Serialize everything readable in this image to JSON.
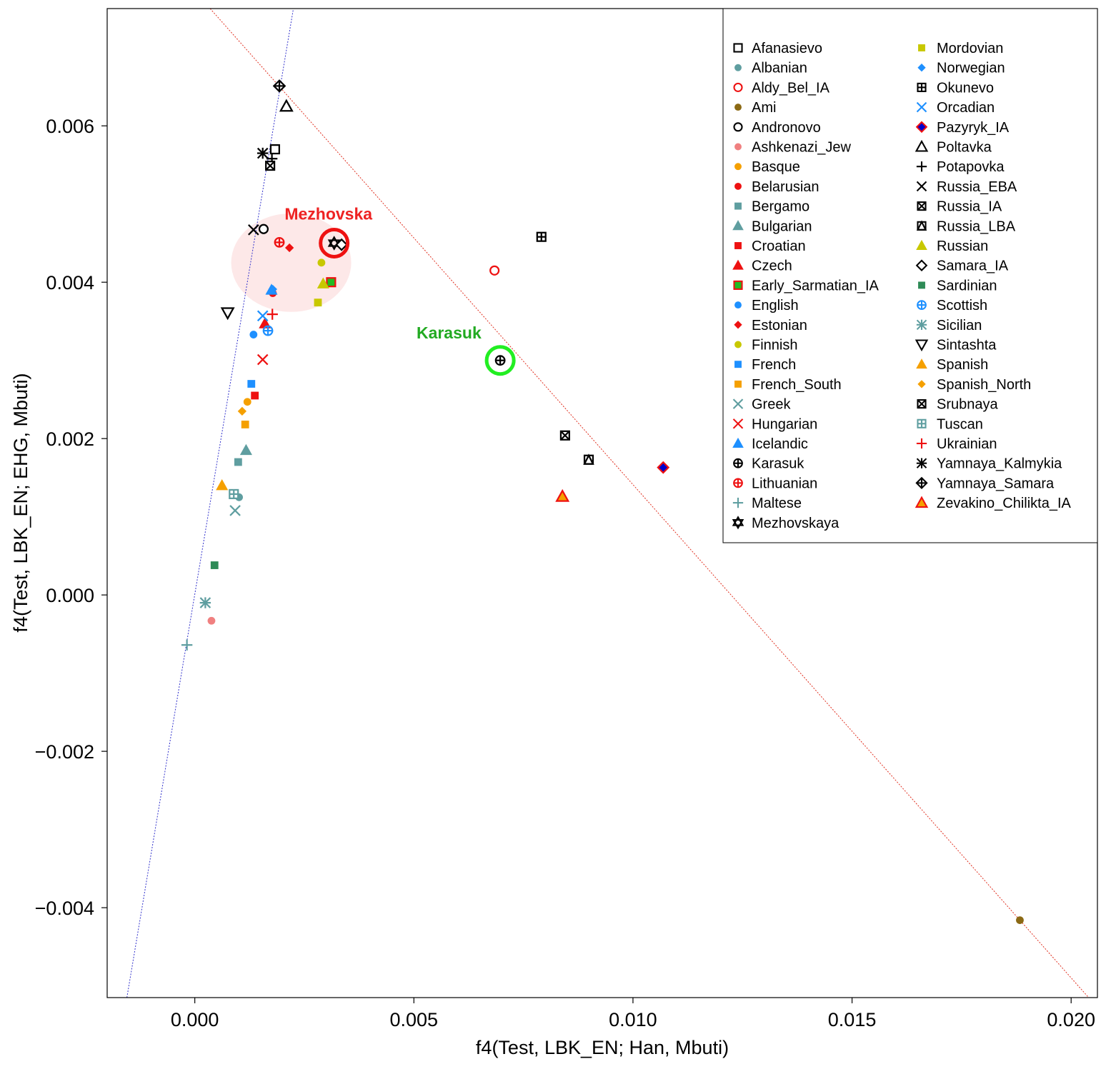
{
  "chart_data": {
    "type": "scatter",
    "title": "",
    "xlabel": "f4(Test, LBK_EN; Han, Mbuti)",
    "ylabel": "f4(Test, LBK_EN; EHG, Mbuti)",
    "xlim": [
      -0.002,
      0.0206
    ],
    "ylim": [
      -0.00515,
      0.0075
    ],
    "xticks": [
      0.0,
      0.005,
      0.01,
      0.015,
      0.02
    ],
    "xtick_labels": [
      "0.000",
      "0.005",
      "0.010",
      "0.015",
      "0.020"
    ],
    "yticks": [
      -0.004,
      -0.002,
      0.0,
      0.002,
      0.004,
      0.006
    ],
    "ytick_labels": [
      "−0.004",
      "−0.002",
      "0.000",
      "0.002",
      "0.004",
      "0.006"
    ],
    "grid": false,
    "legend_position": "top-right",
    "lines": [
      {
        "name": "blue-dotted",
        "color": "#3333cc",
        "points": [
          [
            -0.00155,
            -0.00515
          ],
          [
            0.00225,
            0.0075
          ]
        ]
      },
      {
        "name": "red-dotted",
        "color": "#e03020",
        "points": [
          [
            0.00035,
            0.0075
          ],
          [
            0.0204,
            -0.00515
          ]
        ]
      }
    ],
    "highlight_ellipse": {
      "cx": 0.0022,
      "cy": 0.00425,
      "rx": 0.00137,
      "ry": 0.00063,
      "color": "#fde8e8"
    },
    "annotations": [
      {
        "text": "Mezhovska",
        "x": 0.00305,
        "y": 0.0048,
        "color": "#ee2222"
      },
      {
        "text": "Karasuk",
        "x": 0.0058,
        "y": 0.00328,
        "color": "#22aa22"
      }
    ],
    "highlight_circles": [
      {
        "x": 0.00318,
        "y": 0.0045,
        "color": "#ee1111"
      },
      {
        "x": 0.00697,
        "y": 0.003,
        "color": "#22ee22"
      }
    ],
    "series": [
      {
        "name": "Afanasievo",
        "shape": "square-open",
        "color": "#000000",
        "points": [
          [
            0.00183,
            0.0057
          ]
        ]
      },
      {
        "name": "Albanian",
        "shape": "circle",
        "color": "#5f9ea0",
        "points": [
          [
            0.00101,
            0.00125
          ]
        ]
      },
      {
        "name": "Aldy_Bel_IA",
        "shape": "circle-open",
        "color": "#ee1111",
        "points": [
          [
            0.00684,
            0.00415
          ]
        ]
      },
      {
        "name": "Ami",
        "shape": "circle",
        "color": "#8b6914",
        "points": [
          [
            0.01883,
            -0.00416
          ]
        ]
      },
      {
        "name": "Andronovo",
        "shape": "circle-open",
        "color": "#000000",
        "points": [
          [
            0.00157,
            0.00468
          ]
        ]
      },
      {
        "name": "Ashkenazi_Jew",
        "shape": "circle",
        "color": "#f08080",
        "points": [
          [
            0.00038,
            -0.00033
          ]
        ]
      },
      {
        "name": "Basque",
        "shape": "circle",
        "color": "#f5a000",
        "points": [
          [
            0.0012,
            0.00247
          ]
        ]
      },
      {
        "name": "Belarusian",
        "shape": "circle",
        "color": "#ee1111",
        "points": [
          [
            0.00178,
            0.00386
          ]
        ]
      },
      {
        "name": "Bergamo",
        "shape": "square",
        "color": "#5f9ea0",
        "points": [
          [
            0.00099,
            0.0017
          ]
        ]
      },
      {
        "name": "Bulgarian",
        "shape": "triangle",
        "color": "#5f9ea0",
        "points": [
          [
            0.00117,
            0.00185
          ]
        ]
      },
      {
        "name": "Croatian",
        "shape": "square",
        "color": "#ee1111",
        "points": [
          [
            0.00137,
            0.00255
          ]
        ]
      },
      {
        "name": "Czech",
        "shape": "triangle",
        "color": "#ee1111",
        "points": [
          [
            0.0016,
            0.00347
          ]
        ]
      },
      {
        "name": "Early_Sarmatian_IA",
        "shape": "square-green-red",
        "color": "#22bb22",
        "points": [
          [
            0.00311,
            0.004
          ]
        ]
      },
      {
        "name": "English",
        "shape": "circle",
        "color": "#1e90ff",
        "points": [
          [
            0.00134,
            0.00333
          ]
        ]
      },
      {
        "name": "Estonian",
        "shape": "diamond",
        "color": "#ee1111",
        "points": [
          [
            0.00216,
            0.00444
          ]
        ]
      },
      {
        "name": "Finnish",
        "shape": "circle",
        "color": "#c8c800",
        "points": [
          [
            0.00289,
            0.00425
          ]
        ]
      },
      {
        "name": "French",
        "shape": "square",
        "color": "#1e90ff",
        "points": [
          [
            0.00129,
            0.0027
          ]
        ]
      },
      {
        "name": "French_South",
        "shape": "square",
        "color": "#f5a000",
        "points": [
          [
            0.00115,
            0.00218
          ]
        ]
      },
      {
        "name": "Greek",
        "shape": "x",
        "color": "#5f9ea0",
        "points": [
          [
            0.00092,
            0.00108
          ]
        ]
      },
      {
        "name": "Hungarian",
        "shape": "x",
        "color": "#ee1111",
        "points": [
          [
            0.00155,
            0.00301
          ]
        ]
      },
      {
        "name": "Icelandic",
        "shape": "triangle",
        "color": "#1e90ff",
        "points": [
          [
            0.00175,
            0.0039
          ]
        ]
      },
      {
        "name": "Karasuk",
        "shape": "circle-plus",
        "color": "#000000",
        "points": [
          [
            0.00697,
            0.003
          ]
        ]
      },
      {
        "name": "Lithuanian",
        "shape": "circle-plus",
        "color": "#ee1111",
        "points": [
          [
            0.00193,
            0.00451
          ]
        ]
      },
      {
        "name": "Maltese",
        "shape": "plus",
        "color": "#5f9ea0",
        "points": [
          [
            -0.00018,
            -0.00064
          ]
        ]
      },
      {
        "name": "Mezhovskaya",
        "shape": "star-david",
        "color": "#000000",
        "points": [
          [
            0.00318,
            0.0045
          ]
        ]
      },
      {
        "name": "Mordovian",
        "shape": "square",
        "color": "#c8c800",
        "points": [
          [
            0.00281,
            0.00374
          ]
        ]
      },
      {
        "name": "Norwegian",
        "shape": "diamond",
        "color": "#1e90ff",
        "points": [
          [
            0.00178,
            0.00391
          ]
        ]
      },
      {
        "name": "Okunevo",
        "shape": "square-plus",
        "color": "#000000",
        "points": [
          [
            0.00791,
            0.00458
          ]
        ]
      },
      {
        "name": "Orcadian",
        "shape": "x",
        "color": "#1e90ff",
        "points": [
          [
            0.00155,
            0.00357
          ]
        ]
      },
      {
        "name": "Pazyryk_IA",
        "shape": "diamond-red-blue",
        "color": "#0000cc",
        "points": [
          [
            0.01069,
            0.00163
          ]
        ]
      },
      {
        "name": "Poltavka",
        "shape": "triangle-open",
        "color": "#000000",
        "points": [
          [
            0.00209,
            0.00625
          ]
        ]
      },
      {
        "name": "Potapovka",
        "shape": "plus",
        "color": "#000000",
        "points": [
          [
            0.00176,
            0.00558
          ]
        ]
      },
      {
        "name": "Russia_EBA",
        "shape": "x",
        "color": "#000000",
        "points": [
          [
            0.00134,
            0.00467
          ]
        ]
      },
      {
        "name": "Russia_IA",
        "shape": "square-x",
        "color": "#000000",
        "points": [
          [
            0.00845,
            0.00204
          ]
        ]
      },
      {
        "name": "Russia_LBA",
        "shape": "square-triangle",
        "color": "#000000",
        "points": [
          [
            0.00899,
            0.00173
          ]
        ]
      },
      {
        "name": "Russian",
        "shape": "triangle",
        "color": "#c8c800",
        "points": [
          [
            0.00293,
            0.00398
          ]
        ]
      },
      {
        "name": "Samara_IA",
        "shape": "diamond-open",
        "color": "#000000",
        "points": [
          [
            0.00335,
            0.00448
          ]
        ]
      },
      {
        "name": "Sardinian",
        "shape": "square",
        "color": "#2e8b57",
        "points": [
          [
            0.00045,
            0.00038
          ]
        ]
      },
      {
        "name": "Scottish",
        "shape": "circle-plus",
        "color": "#1e90ff",
        "points": [
          [
            0.00167,
            0.00338
          ]
        ]
      },
      {
        "name": "Sicilian",
        "shape": "asterisk",
        "color": "#5f9ea0",
        "points": [
          [
            0.00024,
            -0.0001
          ]
        ]
      },
      {
        "name": "Sintashta",
        "shape": "triangle-down-open",
        "color": "#000000",
        "points": [
          [
            0.00075,
            0.00361
          ]
        ]
      },
      {
        "name": "Spanish",
        "shape": "triangle",
        "color": "#f5a000",
        "points": [
          [
            0.00062,
            0.0014
          ]
        ]
      },
      {
        "name": "Spanish_North",
        "shape": "diamond",
        "color": "#f5a000",
        "points": [
          [
            0.00108,
            0.00235
          ]
        ]
      },
      {
        "name": "Srubnaya",
        "shape": "square-x",
        "color": "#000000",
        "points": [
          [
            0.00172,
            0.00549
          ]
        ]
      },
      {
        "name": "Tuscan",
        "shape": "square-plus",
        "color": "#5f9ea0",
        "points": [
          [
            0.00089,
            0.00129
          ]
        ]
      },
      {
        "name": "Ukrainian",
        "shape": "plus",
        "color": "#ee1111",
        "points": [
          [
            0.00177,
            0.00359
          ]
        ]
      },
      {
        "name": "Yamnaya_Kalmykia",
        "shape": "asterisk",
        "color": "#000000",
        "points": [
          [
            0.00155,
            0.00565
          ]
        ]
      },
      {
        "name": "Yamnaya_Samara",
        "shape": "diamond-plus",
        "color": "#000000",
        "points": [
          [
            0.00193,
            0.00651
          ]
        ]
      },
      {
        "name": "Zevakino_Chilikta_IA",
        "shape": "triangle-orange-red",
        "color": "#ee1111",
        "points": [
          [
            0.00839,
            0.00126
          ]
        ]
      }
    ]
  }
}
